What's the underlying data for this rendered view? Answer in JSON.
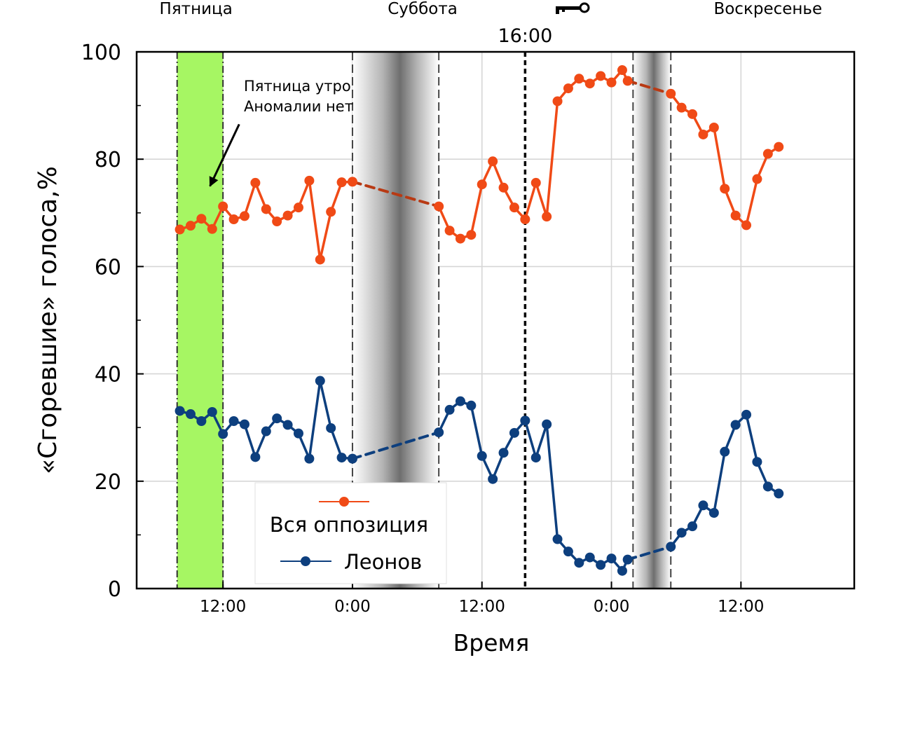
{
  "chart_data": {
    "type": "line",
    "xlabel": "Время",
    "ylabel": "«Сгоревшие» голоса,%",
    "ylim": [
      0,
      100
    ],
    "yticks": [
      0,
      20,
      40,
      60,
      80,
      100
    ],
    "x_unit": "hours from Friday 0:00",
    "xlim": [
      4.0,
      70.5
    ],
    "xticks": [
      {
        "x": 12,
        "label": "12:00"
      },
      {
        "x": 24,
        "label": "0:00"
      },
      {
        "x": 36,
        "label": "12:00"
      },
      {
        "x": 48,
        "label": "0:00"
      },
      {
        "x": 60,
        "label": "12:00"
      }
    ],
    "grid": true,
    "legend_position": "bottom-center",
    "day_labels": [
      {
        "x": 9.5,
        "label": "Пятница"
      },
      {
        "x": 30.5,
        "label": "Суббота"
      },
      {
        "x": 62.5,
        "label": "Воскресенье"
      }
    ],
    "key_marker": {
      "x": 40,
      "label": "16:00",
      "icon": "key-icon"
    },
    "annotation": {
      "lines": [
        "Пятница утро",
        "Аномалии нет"
      ],
      "text_anchor": {
        "x": 10.0,
        "y": 89.5
      },
      "arrow_from": {
        "x": 13.5,
        "y": 86.5
      },
      "arrow_to": {
        "x": 10.8,
        "y": 75.0
      }
    },
    "highlight": {
      "x0": 7.75,
      "x1": 12.0,
      "color": "#a6f663"
    },
    "vlines": [
      {
        "x": 7.75,
        "style": "dashdot"
      },
      {
        "x": 12.0,
        "style": "dashdot"
      },
      {
        "x": 24.0,
        "style": "dashed"
      },
      {
        "x": 32.0,
        "style": "dashed"
      },
      {
        "x": 40.0,
        "style": "bold-dotted"
      },
      {
        "x": 50.0,
        "style": "dashed"
      },
      {
        "x": 53.5,
        "style": "dashed"
      }
    ],
    "shaded": [
      {
        "x0": 24.0,
        "x1": 32.0
      },
      {
        "x0": 50.0,
        "x1": 53.5
      }
    ],
    "gaps": [
      [
        24.0,
        32.0
      ],
      [
        49.5,
        53.5
      ]
    ],
    "series": [
      {
        "name": "Вся оппозиция",
        "color": "#f04a16",
        "gap_color": "#b83a14",
        "x": [
          8,
          9,
          10,
          11,
          12,
          13,
          14,
          15,
          16,
          17,
          18,
          19,
          20,
          21,
          22,
          23,
          24,
          32,
          33,
          34,
          35,
          36,
          37,
          38,
          39,
          40,
          41,
          42,
          43,
          44,
          45,
          46,
          47,
          48,
          49,
          49.5,
          53.5,
          54.5,
          55.5,
          56.5,
          57.5,
          58.5,
          59.5,
          60.5,
          61.5,
          62.5,
          63.5
        ],
        "values": [
          66.9,
          67.6,
          68.9,
          67.0,
          71.2,
          68.8,
          69.4,
          75.6,
          70.7,
          68.4,
          69.5,
          71.0,
          76.0,
          61.3,
          70.2,
          75.7,
          75.8,
          71.2,
          66.7,
          65.2,
          65.9,
          75.3,
          79.6,
          74.7,
          71.0,
          68.8,
          75.6,
          69.3,
          90.8,
          93.2,
          95.0,
          94.1,
          95.5,
          94.3,
          96.6,
          94.6,
          92.2,
          89.6,
          88.4,
          84.6,
          85.9,
          74.5,
          69.5,
          67.7,
          76.3,
          81.0,
          82.3
        ]
      },
      {
        "name": "Леонов",
        "color": "#0d3f7e",
        "gap_color": "#0d3f7e",
        "x": [
          8,
          9,
          10,
          11,
          12,
          13,
          14,
          15,
          16,
          17,
          18,
          19,
          20,
          21,
          22,
          23,
          24,
          32,
          33,
          34,
          35,
          36,
          37,
          38,
          39,
          40,
          41,
          42,
          43,
          44,
          45,
          46,
          47,
          48,
          49,
          49.5,
          53.5,
          54.5,
          55.5,
          56.5,
          57.5,
          58.5,
          59.5,
          60.5,
          61.5,
          62.5,
          63.5
        ],
        "values": [
          33.1,
          32.5,
          31.2,
          32.9,
          28.8,
          31.2,
          30.6,
          24.5,
          29.3,
          31.7,
          30.5,
          28.9,
          24.2,
          38.7,
          29.9,
          24.4,
          24.2,
          29.1,
          33.3,
          34.9,
          34.1,
          24.7,
          20.4,
          25.3,
          29.0,
          31.3,
          24.4,
          30.6,
          9.2,
          6.9,
          4.8,
          5.8,
          4.4,
          5.6,
          3.3,
          5.4,
          7.8,
          10.4,
          11.6,
          15.5,
          14.1,
          25.5,
          30.5,
          32.4,
          23.6,
          19.0,
          17.7
        ]
      }
    ]
  }
}
